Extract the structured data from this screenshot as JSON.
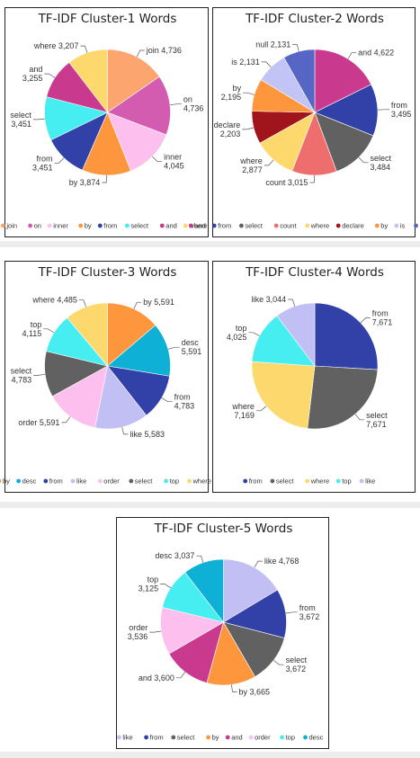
{
  "chart_data": [
    {
      "type": "pie",
      "title": "TF-IDF Cluster-1 Words",
      "slices": [
        {
          "label": "join",
          "value": 4736,
          "display": "4,736",
          "color": "#FDA56E"
        },
        {
          "label": "on",
          "value": 4736,
          "display": "4,736",
          "color": "#D45CB0"
        },
        {
          "label": "inner",
          "value": 4045,
          "display": "4,045",
          "color": "#FDC0EE"
        },
        {
          "label": "by",
          "value": 3874,
          "display": "3,874",
          "color": "#FD963C"
        },
        {
          "label": "from",
          "value": 3451,
          "display": "3,451",
          "color": "#3141A8"
        },
        {
          "label": "select",
          "value": 3451,
          "display": "3,451",
          "color": "#46EEF2"
        },
        {
          "label": "and",
          "value": 3255,
          "display": "3,255",
          "color": "#C93A8F"
        },
        {
          "label": "where",
          "value": 3207,
          "display": "3,207",
          "color": "#FDD86C"
        }
      ],
      "legend": [
        "join",
        "on",
        "inner",
        "by",
        "from",
        "select",
        "and",
        "where"
      ],
      "legend_placement": "bottom"
    },
    {
      "type": "pie",
      "title": "TF-IDF Cluster-2 Words",
      "slices": [
        {
          "label": "and",
          "value": 4622,
          "display": "4,622",
          "color": "#C93A8F"
        },
        {
          "label": "from",
          "value": 3495,
          "display": "3,495",
          "color": "#3141A8"
        },
        {
          "label": "select",
          "value": 3484,
          "display": "3,484",
          "color": "#616161"
        },
        {
          "label": "count",
          "value": 3015,
          "display": "3,015",
          "color": "#EE6E6E"
        },
        {
          "label": "where",
          "value": 2877,
          "display": "2,877",
          "color": "#FDD86C"
        },
        {
          "label": "declare",
          "value": 2203,
          "display": "2,203",
          "color": "#A0141C"
        },
        {
          "label": "by",
          "value": 2195,
          "display": "2,195",
          "color": "#FD963C"
        },
        {
          "label": "is",
          "value": 2131,
          "display": "2,131",
          "color": "#C2C4F6"
        },
        {
          "label": "null",
          "value": 2131,
          "display": "2,131",
          "color": "#5566C4"
        }
      ],
      "legend": [
        "and",
        "from",
        "select",
        "count",
        "where",
        "declare",
        "by",
        "is",
        "null"
      ],
      "legend_placement": "bottom"
    },
    {
      "type": "pie",
      "title": "TF-IDF Cluster-3 Words",
      "slices": [
        {
          "label": "by",
          "value": 5591,
          "display": "5,591",
          "color": "#FD963C"
        },
        {
          "label": "desc",
          "value": 5591,
          "display": "5,591",
          "color": "#0FB0D6"
        },
        {
          "label": "from",
          "value": 4783,
          "display": "4,783",
          "color": "#3141A8"
        },
        {
          "label": "like",
          "value": 5583,
          "display": "5,583",
          "color": "#C2BFF4"
        },
        {
          "label": "order",
          "value": 5591,
          "display": "5,591",
          "color": "#FDC0EE"
        },
        {
          "label": "select",
          "value": 4783,
          "display": "4,783",
          "color": "#616161"
        },
        {
          "label": "top",
          "value": 4115,
          "display": "4,115",
          "color": "#46EEF2"
        },
        {
          "label": "where",
          "value": 4485,
          "display": "4,485",
          "color": "#FDD86C"
        }
      ],
      "legend": [
        "by",
        "desc",
        "from",
        "like",
        "order",
        "select",
        "top",
        "where"
      ],
      "legend_placement": "bottom"
    },
    {
      "type": "pie",
      "title": "TF-IDF Cluster-4 Words",
      "slices": [
        {
          "label": "from",
          "value": 7671,
          "display": "7,671",
          "color": "#3141A8"
        },
        {
          "label": "select",
          "value": 7671,
          "display": "7,671",
          "color": "#616161"
        },
        {
          "label": "where",
          "value": 7169,
          "display": "7,169",
          "color": "#FDD86C"
        },
        {
          "label": "top",
          "value": 4025,
          "display": "4,025",
          "color": "#46EEF2"
        },
        {
          "label": "like",
          "value": 3044,
          "display": "3,044",
          "color": "#C2BFF4"
        }
      ],
      "legend": [
        "from",
        "select",
        "where",
        "top",
        "like"
      ],
      "legend_placement": "bottom"
    },
    {
      "type": "pie",
      "title": "TF-IDF Cluster-5 Words",
      "slices": [
        {
          "label": "like",
          "value": 4768,
          "display": "4,768",
          "color": "#C2BFF4"
        },
        {
          "label": "from",
          "value": 3672,
          "display": "3,672",
          "color": "#3141A8"
        },
        {
          "label": "select",
          "value": 3672,
          "display": "3,672",
          "color": "#616161"
        },
        {
          "label": "by",
          "value": 3665,
          "display": "3,665",
          "color": "#FD963C"
        },
        {
          "label": "and",
          "value": 3600,
          "display": "3,600",
          "color": "#C93A8F"
        },
        {
          "label": "order",
          "value": 3536,
          "display": "3,536",
          "color": "#FDC0EE"
        },
        {
          "label": "top",
          "value": 3125,
          "display": "3,125",
          "color": "#46EEF2"
        },
        {
          "label": "desc",
          "value": 3037,
          "display": "3,037",
          "color": "#0FB0D6"
        }
      ],
      "legend": [
        "like",
        "from",
        "select",
        "by",
        "and",
        "order",
        "top",
        "desc"
      ],
      "legend_placement": "bottom"
    }
  ]
}
